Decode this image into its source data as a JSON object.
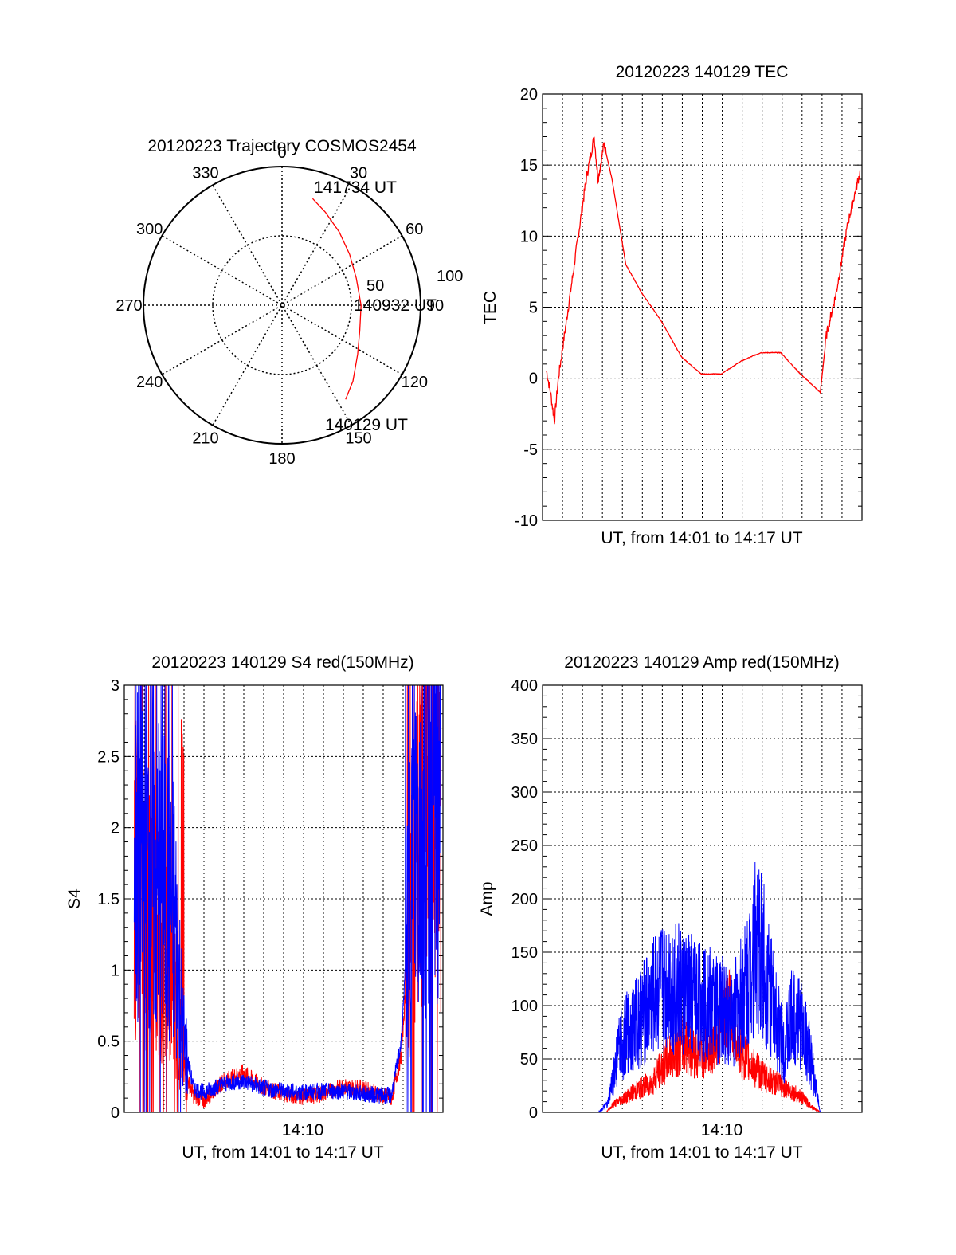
{
  "chart_data": [
    {
      "id": "polar",
      "type": "scatter",
      "subtype": "polar-trajectory",
      "title": "20120223 Trajectory COSMOS2454",
      "angle_labels": [
        "0",
        "30",
        "60",
        "90",
        "120",
        "150",
        "180",
        "210",
        "240",
        "270",
        "300",
        "330"
      ],
      "radial_labels": [
        "50",
        "100"
      ],
      "radial_max": 100,
      "grid": true,
      "annotations": [
        "141734 UT",
        "140932 UT",
        "140129 UT"
      ],
      "series": [
        {
          "color": "#ff0000",
          "points": [
            {
              "azimuth": 16,
              "radius": 80
            },
            {
              "azimuth": 25,
              "radius": 74
            },
            {
              "azimuth": 38,
              "radius": 67
            },
            {
              "azimuth": 53,
              "radius": 61
            },
            {
              "azimuth": 70,
              "radius": 57
            },
            {
              "azimuth": 90,
              "radius": 57
            },
            {
              "azimuth": 108,
              "radius": 59
            },
            {
              "azimuth": 123,
              "radius": 65
            },
            {
              "azimuth": 137,
              "radius": 75
            },
            {
              "azimuth": 146,
              "radius": 82
            }
          ]
        }
      ]
    },
    {
      "id": "tec",
      "type": "line",
      "title": "20120223 140129 TEC",
      "xlabel": "UT, from 14:01 to 14:17 UT",
      "ylabel": "TEC",
      "ylim": [
        -10,
        20
      ],
      "yticks": [
        "-10",
        "-5",
        "0",
        "5",
        "10",
        "15",
        "20"
      ],
      "xlim_minutes": [
        0,
        16.1
      ],
      "grid": true,
      "series": [
        {
          "color": "#ff0000",
          "x": [
            0.2,
            0.4,
            0.6,
            0.8,
            1.2,
            1.8,
            2.2,
            2.6,
            2.8,
            3.1,
            3.5,
            4.2,
            5.0,
            6.0,
            7.0,
            8.0,
            9.0,
            10.0,
            11.0,
            12.0,
            13.0,
            14.0,
            14.3,
            14.8,
            15.4,
            16.0
          ],
          "y": [
            0.5,
            -1.0,
            -3.0,
            0.0,
            4.0,
            10.0,
            14.0,
            17.0,
            14.0,
            16.5,
            14.0,
            8.0,
            6.0,
            4.0,
            1.5,
            0.3,
            0.3,
            1.2,
            1.8,
            1.8,
            0.3,
            -1.0,
            3.0,
            6.0,
            11.0,
            14.5
          ]
        }
      ]
    },
    {
      "id": "s4",
      "type": "line",
      "title": "20120223 140129 S4 red(150MHz)",
      "xlabel": "UT, from 14:01 to 14:17 UT",
      "ylabel": "S4",
      "ylim": [
        0,
        3
      ],
      "yticks": [
        "0",
        "0.5",
        "1",
        "1.5",
        "2",
        "2.5",
        "3"
      ],
      "xtick_labels": [
        "14:10"
      ],
      "xlim_minutes": [
        0,
        16.1
      ],
      "grid": true,
      "series": [
        {
          "color": "#ff0000",
          "x": [
            0.5,
            1.0,
            1.5,
            2.0,
            2.5,
            3.0,
            3.5,
            4.0,
            5.0,
            6.0,
            7.0,
            8.0,
            9.0,
            10.0,
            11.0,
            12.0,
            13.0,
            13.5,
            14.0,
            14.5,
            15.0,
            15.5,
            16.0
          ],
          "y": [
            1.7,
            1.4,
            1.3,
            1.1,
            0.9,
            0.3,
            0.12,
            0.08,
            0.22,
            0.28,
            0.18,
            0.13,
            0.11,
            0.13,
            0.18,
            0.17,
            0.12,
            0.1,
            0.4,
            1.5,
            2.0,
            2.2,
            2.3
          ]
        },
        {
          "color": "#0000ff",
          "x": [
            0.5,
            1.0,
            1.5,
            2.0,
            2.5,
            3.0,
            3.5,
            4.0,
            5.0,
            6.0,
            7.0,
            8.0,
            9.0,
            10.0,
            11.0,
            12.0,
            13.0,
            13.5,
            14.0,
            14.5,
            15.0,
            15.5,
            16.0
          ],
          "y": [
            1.9,
            1.8,
            1.7,
            1.6,
            1.4,
            0.5,
            0.17,
            0.14,
            0.2,
            0.22,
            0.17,
            0.15,
            0.14,
            0.15,
            0.15,
            0.13,
            0.12,
            0.12,
            0.5,
            1.8,
            2.1,
            2.3,
            2.4
          ]
        }
      ]
    },
    {
      "id": "amp",
      "type": "line",
      "title": "20120223 140129 Amp red(150MHz)",
      "xlabel": "UT, from 14:01 to 14:17 UT",
      "ylabel": "Amp",
      "ylim": [
        0,
        400
      ],
      "yticks": [
        "0",
        "50",
        "100",
        "150",
        "200",
        "250",
        "300",
        "350",
        "400"
      ],
      "xtick_labels": [
        "14:10"
      ],
      "xlim_minutes": [
        0,
        16.1
      ],
      "grid": true,
      "series": [
        {
          "color": "#ff0000",
          "x": [
            0,
            3.2,
            3.6,
            4.5,
            5.5,
            6.5,
            7.2,
            7.8,
            8.5,
            9.0,
            9.5,
            10.0,
            11.0,
            12.0,
            13.0,
            13.6,
            14.0,
            16.1
          ],
          "y": [
            0,
            0,
            8,
            18,
            28,
            55,
            65,
            55,
            60,
            85,
            95,
            55,
            35,
            25,
            15,
            5,
            0,
            0
          ]
        },
        {
          "color": "#0000ff",
          "x": [
            0,
            2.8,
            3.3,
            3.8,
            4.3,
            5.0,
            5.5,
            6.0,
            6.5,
            7.2,
            8.0,
            8.5,
            9.0,
            9.6,
            10.3,
            10.7,
            11.2,
            11.7,
            12.2,
            12.6,
            13.0,
            13.4,
            13.7,
            14.0,
            16.1
          ],
          "y": [
            0,
            0,
            8,
            55,
            75,
            90,
            105,
            115,
            120,
            110,
            105,
            100,
            95,
            90,
            120,
            160,
            140,
            90,
            60,
            90,
            85,
            60,
            30,
            0,
            0
          ]
        }
      ]
    }
  ]
}
